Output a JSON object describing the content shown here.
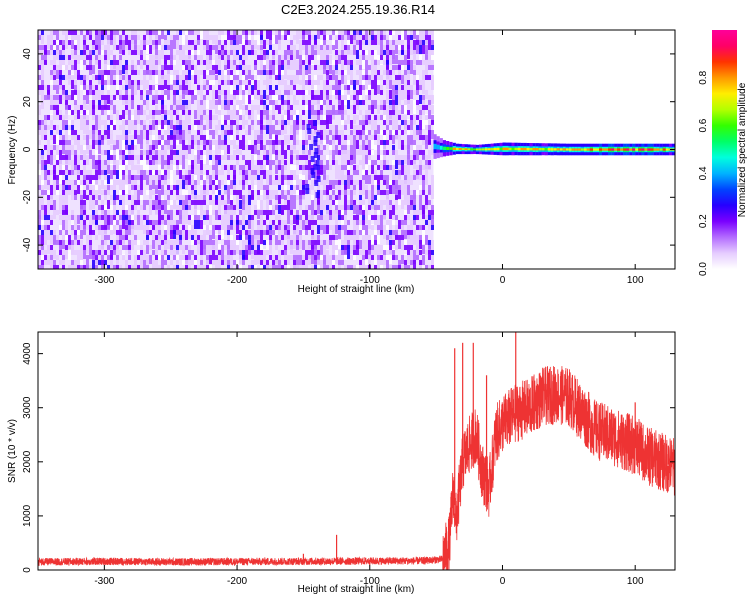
{
  "title": "C2E3.2024.255.19.36.R14",
  "chart_data": [
    {
      "type": "heatmap",
      "title": "C2E3.2024.255.19.36.R14",
      "xlabel": "Height of straight line (km)",
      "ylabel": "Frequency (Hz)",
      "xlim": [
        -350,
        130
      ],
      "ylim": [
        -50,
        50
      ],
      "x_ticks": [
        -300,
        -200,
        -100,
        0,
        100
      ],
      "y_ticks": [
        -40,
        -20,
        0,
        20,
        40
      ],
      "noise_region_x": [
        -350,
        -52
      ],
      "noise_region_freq": [
        -50,
        50
      ],
      "signal_band": [
        {
          "x": -52,
          "freq_low": -3.5,
          "freq_high": 6,
          "amplitude": 0.4
        },
        {
          "x": -45,
          "freq_low": -2.5,
          "freq_high": 3.5,
          "amplitude": 0.6
        },
        {
          "x": -35,
          "freq_low": -1.5,
          "freq_high": 2,
          "amplitude": 0.85
        },
        {
          "x": -20,
          "freq_low": -1.5,
          "freq_high": 1.5,
          "amplitude": 0.7
        },
        {
          "x": 0,
          "freq_low": -2,
          "freq_high": 2.5,
          "amplitude": 0.75
        },
        {
          "x": 50,
          "freq_low": -2,
          "freq_high": 2,
          "amplitude": 0.8
        },
        {
          "x": 100,
          "freq_low": -2,
          "freq_high": 2,
          "amplitude": 0.95
        },
        {
          "x": 130,
          "freq_low": -2,
          "freq_high": 2,
          "amplitude": 0.8
        }
      ],
      "colorbar": {
        "label": "Normalized spectral amplitude",
        "range": [
          0,
          1
        ],
        "ticks": [
          0.0,
          0.2,
          0.4,
          0.6,
          0.8
        ],
        "tick_labels": [
          "0.0",
          "0.2",
          "0.4",
          "0.6",
          "0.8"
        ],
        "colors": [
          "#ffffff",
          "#e5ccff",
          "#b36bff",
          "#7a00ff",
          "#2600ff",
          "#0044ff",
          "#00b3ff",
          "#00ffdd",
          "#00ff66",
          "#33ff00",
          "#b3ff00",
          "#ffee00",
          "#ff9900",
          "#ff3300",
          "#ff0066",
          "#ff0099"
        ]
      }
    },
    {
      "type": "line",
      "xlabel": "Height of straight line (km)",
      "ylabel": "SNR (10 * v/v)",
      "xlim": [
        -350,
        130
      ],
      "ylim": [
        0,
        4400
      ],
      "x_ticks": [
        -300,
        -200,
        -100,
        0,
        100
      ],
      "y_ticks": [
        0,
        1000,
        2000,
        3000,
        4000
      ],
      "color": "#ee3333",
      "series": [
        {
          "x": [
            -350,
            -300,
            -250,
            -200,
            -150,
            -100,
            -60,
            -45,
            -40,
            -37,
            -35,
            -30,
            -25,
            -20,
            -15,
            -10,
            -5,
            0,
            10,
            20,
            30,
            40,
            50,
            60,
            70,
            80,
            90,
            100,
            110,
            120,
            130
          ],
          "values": [
            150,
            160,
            150,
            155,
            160,
            165,
            170,
            200,
            500,
            1500,
            900,
            2000,
            2300,
            2500,
            1800,
            1500,
            2500,
            2700,
            2900,
            3000,
            3200,
            3250,
            3200,
            2900,
            2600,
            2500,
            2400,
            2300,
            2100,
            2000,
            1900
          ],
          "spikes": [
            {
              "x": -150,
              "value": 300
            },
            {
              "x": -125,
              "value": 650
            },
            {
              "x": -36,
              "value": 4100
            },
            {
              "x": -30,
              "value": 4200
            },
            {
              "x": -22,
              "value": 4200
            },
            {
              "x": -12,
              "value": 3600
            },
            {
              "x": 10,
              "value": 4400
            },
            {
              "x": 45,
              "value": 3600
            },
            {
              "x": 100,
              "value": 3100
            },
            {
              "x": 125,
              "value": 2300
            }
          ]
        }
      ]
    }
  ]
}
